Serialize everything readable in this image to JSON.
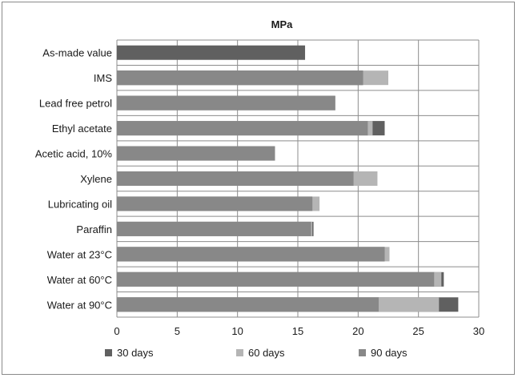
{
  "chart_data": {
    "type": "bar",
    "orientation": "horizontal",
    "stacked": "overlay",
    "title": "MPa",
    "xlim": [
      0,
      30
    ],
    "xticks": [
      0,
      5,
      10,
      15,
      20,
      25,
      30
    ],
    "grid": true,
    "legend_position": "bottom",
    "categories": [
      "As-made value",
      "IMS",
      "Lead free petrol",
      "Ethyl acetate",
      "Acetic acid, 10%",
      "Xylene",
      "Lubricating oil",
      "Paraffin",
      "Water at 23°C",
      "Water at 60°C",
      "Water at 90°C"
    ],
    "series": [
      {
        "name": "30 days",
        "color": "#606060",
        "values": [
          15.6,
          20.4,
          18.1,
          22.2,
          13.1,
          19.6,
          16.2,
          16.3,
          22.2,
          27.1,
          28.3
        ]
      },
      {
        "name": "60 days",
        "color": "#b5b5b5",
        "values": [
          null,
          22.5,
          null,
          21.2,
          null,
          21.6,
          16.8,
          16.2,
          22.6,
          26.9,
          26.7
        ]
      },
      {
        "name": "90 days",
        "color": "#888888",
        "values": [
          null,
          20.4,
          18.1,
          20.8,
          13.1,
          19.6,
          16.2,
          16.1,
          22.2,
          26.3,
          21.7
        ]
      }
    ]
  }
}
